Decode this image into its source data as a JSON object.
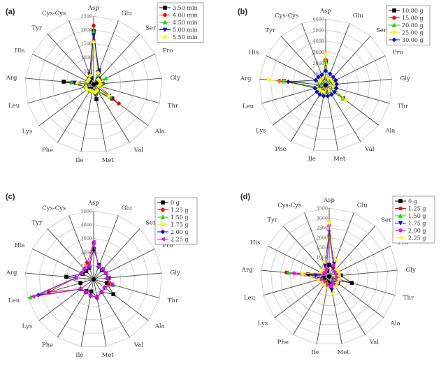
{
  "axes": [
    "Asp",
    "Glu",
    "Ser",
    "Pro",
    "Gly",
    "Thr",
    "Ala",
    "Val",
    "Met",
    "Ile",
    "Phe",
    "Lys",
    "Leu",
    "Arg",
    "His",
    "Tyr",
    "Cys-Cys"
  ],
  "chart_data": [
    {
      "type": "radar",
      "panel_label": "(a)",
      "rmin": 0,
      "rmax": 2500,
      "ticks": [
        "500",
        "1000",
        "1500",
        "2000",
        "2500"
      ],
      "center_tick": "200",
      "legend_placement": "top-right",
      "series": [
        {
          "name": "3.50 min",
          "color": "#000000",
          "marker": "square",
          "values": [
            1950,
            500,
            250,
            150,
            250,
            200,
            850,
            300,
            550,
            250,
            200,
            250,
            300,
            1100,
            200,
            200,
            250
          ]
        },
        {
          "name": "4.00 min",
          "color": "#ff0000",
          "marker": "circle",
          "values": [
            2150,
            450,
            300,
            250,
            350,
            200,
            1150,
            300,
            350,
            250,
            250,
            300,
            300,
            800,
            250,
            250,
            400
          ]
        },
        {
          "name": "4.50 min",
          "color": "#00dd00",
          "marker": "triangle-up",
          "values": [
            1950,
            450,
            250,
            500,
            300,
            200,
            750,
            300,
            300,
            250,
            250,
            300,
            300,
            800,
            250,
            300,
            350
          ]
        },
        {
          "name": "5.00 min",
          "color": "#0000ff",
          "marker": "triangle-down",
          "values": [
            1800,
            550,
            300,
            250,
            250,
            200,
            700,
            250,
            350,
            250,
            250,
            250,
            300,
            700,
            250,
            250,
            400
          ]
        },
        {
          "name": "5.50 min",
          "color": "#ffff00",
          "marker": "diamond",
          "values": [
            1550,
            450,
            250,
            250,
            250,
            200,
            700,
            250,
            300,
            250,
            250,
            300,
            300,
            600,
            250,
            250,
            350
          ]
        }
      ]
    },
    {
      "type": "radar",
      "panel_label": "(b)",
      "rmin": 0,
      "rmax": 6000,
      "ticks": [
        "1000",
        "2000",
        "3000",
        "4000",
        "5000",
        "6000"
      ],
      "center_tick": "100",
      "legend_placement": "top-right",
      "series": [
        {
          "name": "10.00 g",
          "color": "#000000",
          "marker": "square",
          "values": [
            2200,
            600,
            700,
            700,
            800,
            700,
            2000,
            600,
            800,
            700,
            600,
            600,
            700,
            3800,
            600,
            600,
            700
          ]
        },
        {
          "name": "15.00 g",
          "color": "#ff0000",
          "marker": "circle",
          "values": [
            2300,
            600,
            700,
            700,
            800,
            700,
            2000,
            600,
            800,
            700,
            600,
            600,
            700,
            4200,
            600,
            600,
            700
          ]
        },
        {
          "name": "20.00 g",
          "color": "#00dd00",
          "marker": "triangle-up",
          "values": [
            2100,
            600,
            700,
            700,
            800,
            700,
            2000,
            600,
            800,
            700,
            600,
            600,
            700,
            3800,
            600,
            600,
            900
          ]
        },
        {
          "name": "25.00 g",
          "color": "#ffff00",
          "marker": "triangle-down",
          "values": [
            2800,
            600,
            700,
            700,
            800,
            700,
            2300,
            600,
            1000,
            700,
            700,
            700,
            900,
            5200,
            600,
            600,
            700
          ]
        },
        {
          "name": "30.00 g",
          "color": "#0000ff",
          "marker": "diamond",
          "values": [
            1300,
            1100,
            1000,
            1000,
            1000,
            1000,
            1000,
            1000,
            1000,
            1000,
            1000,
            1000,
            1000,
            3400,
            1000,
            1000,
            1000
          ]
        }
      ]
    },
    {
      "type": "radar",
      "panel_label": "(c)",
      "rmin": 0,
      "rmax": 5000,
      "ticks": [
        "1000",
        "2000",
        "3000",
        "4000",
        "5000"
      ],
      "center_tick": "100",
      "legend_placement": "top-right",
      "series": [
        {
          "name": "0 g",
          "color": "#000000",
          "marker": "square",
          "values": [
            2200,
            1100,
            900,
            1000,
            1100,
            1000,
            1800,
            1100,
            1300,
            900,
            1000,
            1200,
            1000,
            2000,
            900,
            800,
            900
          ]
        },
        {
          "name": "1.25 g",
          "color": "#ff0000",
          "marker": "circle",
          "values": [
            2600,
            1000,
            1000,
            1000,
            1000,
            1200,
            1000,
            1100,
            1400,
            1200,
            1100,
            1200,
            3400,
            1300,
            1000,
            1000,
            1300
          ]
        },
        {
          "name": "1.50 g",
          "color": "#00dd00",
          "marker": "triangle-up",
          "values": [
            2700,
            1000,
            1000,
            1000,
            1000,
            1500,
            1000,
            1100,
            1300,
            1200,
            1100,
            1200,
            4800,
            1300,
            1000,
            1000,
            1000
          ]
        },
        {
          "name": "1.75 g",
          "color": "#ffff00",
          "marker": "triangle-down",
          "values": [
            2700,
            1000,
            1000,
            1000,
            1000,
            1400,
            1000,
            1100,
            1300,
            1200,
            1100,
            1200,
            4600,
            1300,
            1000,
            1000,
            1000
          ]
        },
        {
          "name": "2.00 g",
          "color": "#0000ff",
          "marker": "diamond",
          "values": [
            2700,
            1000,
            1000,
            1000,
            1000,
            1400,
            1000,
            1100,
            1300,
            1200,
            1100,
            1200,
            4200,
            1300,
            1000,
            1000,
            1000
          ]
        },
        {
          "name": "2.25 g",
          "color": "#ff00ff",
          "marker": "triangle-left",
          "values": [
            2700,
            1000,
            1000,
            1000,
            1000,
            1400,
            1000,
            1100,
            1300,
            1200,
            1100,
            1200,
            4600,
            1300,
            1000,
            1000,
            1000
          ]
        }
      ]
    },
    {
      "type": "radar",
      "panel_label": "(d)",
      "rmin": 0,
      "rmax": 3500,
      "ticks": [
        "500",
        "1000",
        "1500",
        "2000",
        "2500",
        "3000",
        "3500"
      ],
      "center_tick": "500",
      "legend_placement": "top-right",
      "series": [
        {
          "name": "0 g",
          "color": "#000000",
          "marker": "square",
          "values": [
            600,
            550,
            400,
            400,
            600,
            1200,
            300,
            400,
            400,
            300,
            300,
            300,
            300,
            1100,
            300,
            300,
            300
          ]
        },
        {
          "name": "1.25 g",
          "color": "#ff0000",
          "marker": "circle",
          "values": [
            2100,
            600,
            400,
            400,
            500,
            400,
            300,
            400,
            500,
            400,
            300,
            400,
            400,
            2200,
            300,
            300,
            400
          ]
        },
        {
          "name": "1.50 g",
          "color": "#00dd00",
          "marker": "triangle-up",
          "values": [
            2200,
            600,
            400,
            400,
            500,
            400,
            300,
            400,
            500,
            400,
            300,
            400,
            400,
            2100,
            300,
            300,
            400
          ]
        },
        {
          "name": "1.75 g",
          "color": "#0000ff",
          "marker": "triangle-down",
          "values": [
            2300,
            700,
            400,
            400,
            500,
            500,
            600,
            400,
            700,
            500,
            400,
            400,
            500,
            700,
            300,
            300,
            600
          ]
        },
        {
          "name": "2.00 g",
          "color": "#ff00ff",
          "marker": "circle",
          "values": [
            2600,
            600,
            400,
            400,
            400,
            400,
            500,
            400,
            500,
            500,
            400,
            400,
            500,
            1800,
            300,
            300,
            400
          ]
        },
        {
          "name": "2.25 g",
          "color": "#ffff00",
          "marker": "triangle-left",
          "values": [
            2800,
            900,
            500,
            500,
            500,
            500,
            500,
            600,
            900,
            600,
            500,
            500,
            600,
            1400,
            500,
            500,
            800
          ]
        }
      ]
    }
  ]
}
